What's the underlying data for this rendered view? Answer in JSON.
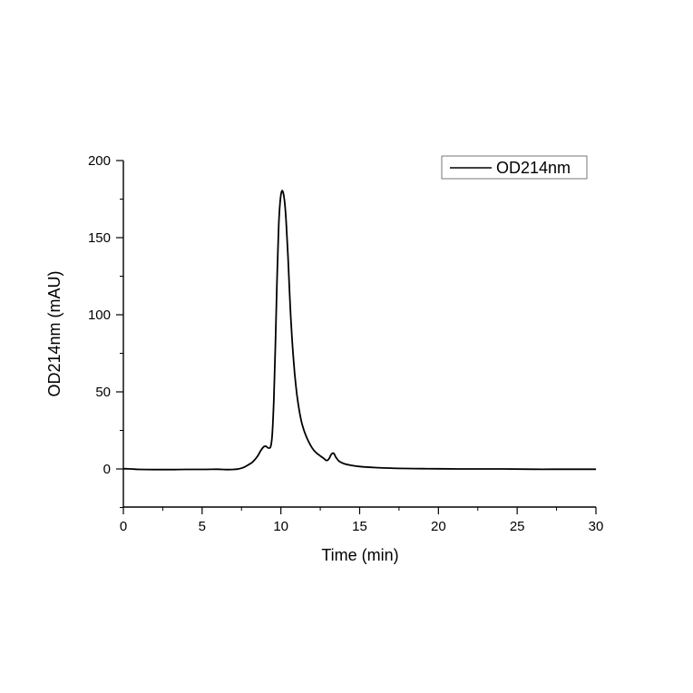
{
  "chart_data": {
    "type": "line",
    "title": "",
    "xlabel": "Time (min)",
    "ylabel": "OD214nm (mAU)",
    "xlim": [
      0,
      30
    ],
    "ylim": [
      -25,
      200
    ],
    "xticks": [
      0,
      5,
      10,
      15,
      20,
      25,
      30
    ],
    "xtick_labels": [
      "0",
      "5",
      "10",
      "15",
      "20",
      "25",
      "30"
    ],
    "yticks": [
      0,
      50,
      100,
      150,
      200
    ],
    "ytick_labels": [
      "0",
      "50",
      "100",
      "150",
      "200"
    ],
    "grid": false,
    "legend_position": "upper right",
    "series": [
      {
        "name": "OD214nm",
        "color": "#000000",
        "x": [
          0,
          0.5,
          1,
          2,
          3,
          4,
          5,
          6,
          6.5,
          7,
          7.3,
          7.6,
          7.9,
          8.2,
          8.5,
          8.7,
          8.9,
          9.05,
          9.2,
          9.35,
          9.45,
          9.55,
          9.65,
          9.75,
          9.85,
          9.95,
          10.05,
          10.15,
          10.25,
          10.35,
          10.45,
          10.55,
          10.65,
          10.8,
          10.95,
          11.1,
          11.3,
          11.5,
          11.7,
          11.9,
          12.1,
          12.3,
          12.5,
          12.7,
          12.9,
          13.05,
          13.2,
          13.35,
          13.5,
          13.7,
          14.0,
          14.5,
          15,
          16,
          17,
          18,
          19,
          20,
          22,
          24,
          26,
          28,
          30
        ],
        "y": [
          0.2,
          0,
          -0.3,
          -0.4,
          -0.4,
          -0.3,
          -0.3,
          -0.2,
          -0.4,
          -0.3,
          0,
          0.8,
          2.5,
          4.5,
          8,
          11.5,
          14.3,
          14.7,
          13.6,
          14.5,
          22,
          45,
          80,
          120,
          155,
          173,
          180,
          179,
          172,
          158,
          138,
          115,
          94,
          71,
          54,
          42,
          31,
          24,
          19,
          15,
          12,
          10,
          8.5,
          7,
          5.5,
          6.5,
          9.5,
          10.2,
          7.5,
          5,
          3.5,
          2.3,
          1.6,
          0.9,
          0.5,
          0.3,
          0.2,
          0.1,
          0,
          0,
          -0.2,
          -0.2,
          -0.2
        ]
      }
    ]
  },
  "legend": {
    "label": "OD214nm"
  },
  "axes": {
    "xlabel": "Time (min)",
    "ylabel": "OD214nm (mAU)"
  }
}
